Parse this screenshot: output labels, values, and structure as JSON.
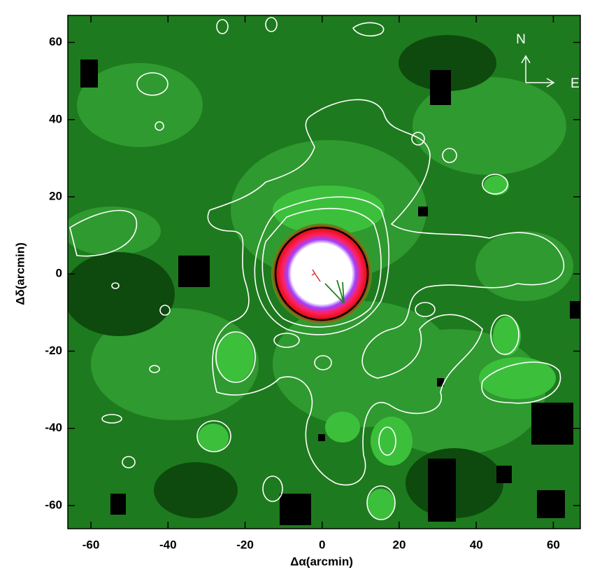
{
  "chart_data": {
    "type": "image",
    "xlabel": "Δα(arcmin)",
    "ylabel": "Δδ(arcmin)",
    "xlim": [
      -66,
      67
    ],
    "ylim": [
      -66,
      67
    ],
    "xticks": [
      -60,
      -40,
      -20,
      0,
      20,
      40,
      60
    ],
    "yticks": [
      -60,
      -40,
      -20,
      0,
      20,
      40,
      60
    ],
    "annotations": [
      "N",
      "E"
    ]
  }
}
